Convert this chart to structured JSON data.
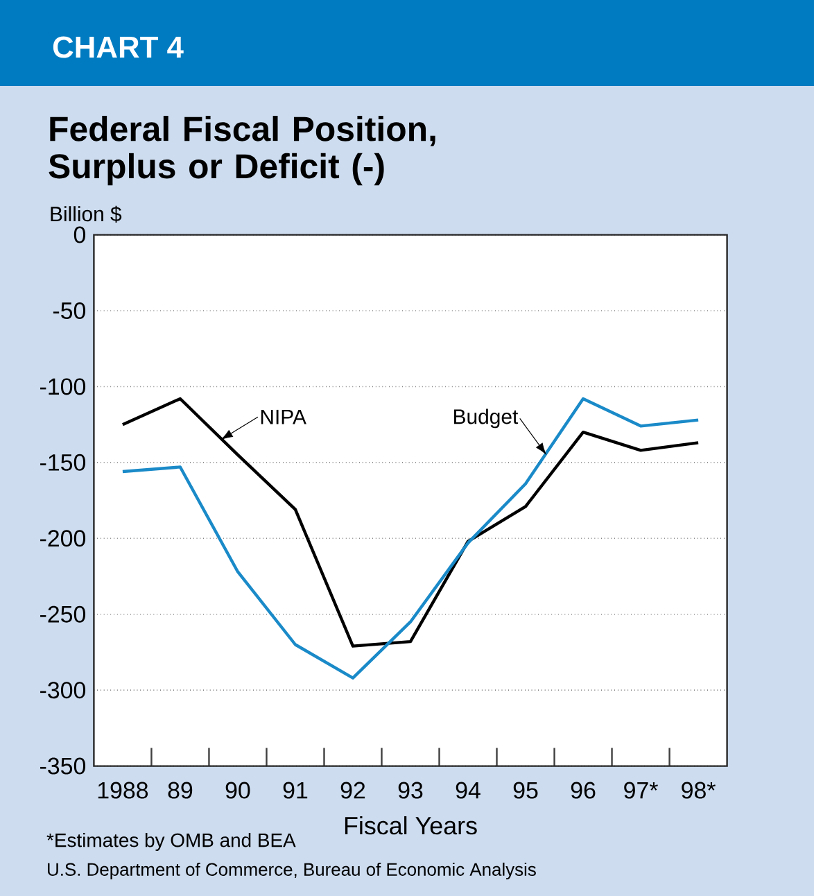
{
  "chart_data": {
    "type": "line",
    "title": "Federal Fiscal Position, Surplus or Deficit (-)",
    "ylabel": "Billion $",
    "xlabel": "Fiscal Years",
    "categories": [
      "1988",
      "89",
      "90",
      "91",
      "92",
      "93",
      "94",
      "95",
      "96",
      "97*",
      "98*"
    ],
    "series": [
      {
        "name": "NIPA",
        "color": "#000000",
        "values": [
          -125,
          -108,
          -145,
          -181,
          -271,
          -268,
          -202,
          -179,
          -130,
          -142,
          -137
        ]
      },
      {
        "name": "Budget",
        "color": "#1a8ac8",
        "values": [
          -156,
          -153,
          -222,
          -270,
          -292,
          -255,
          -203,
          -164,
          -108,
          -126,
          -122
        ]
      }
    ],
    "ylim": [
      -350,
      0
    ],
    "yticks": [
      -350,
      -300,
      -250,
      -200,
      -150,
      -100,
      -50,
      0
    ],
    "grid": "y",
    "marker": "none",
    "line_style": "solid",
    "annotations": [
      "CHART 4",
      "*Estimates by OMB and BEA",
      "U.S. Department of Commerce, Bureau of Economic Analysis"
    ]
  }
}
